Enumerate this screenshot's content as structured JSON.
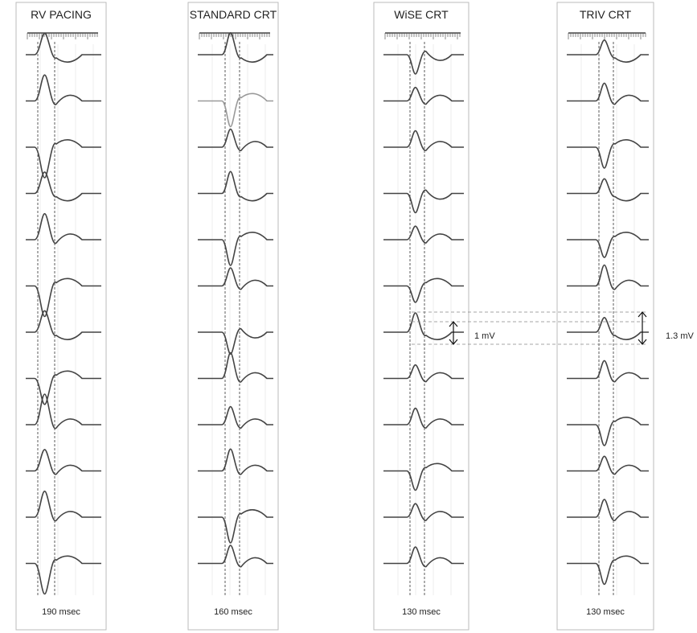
{
  "panels": [
    {
      "title": "RV PACING",
      "duration": "190 msec"
    },
    {
      "title": "STANDARD CRT",
      "duration": "160 msec"
    },
    {
      "title": "WiSE CRT",
      "duration": "130 msec"
    },
    {
      "title": "TRIV CRT",
      "duration": "130 msec"
    }
  ],
  "annotations": [
    {
      "label": "1 mV"
    },
    {
      "label": "1.3 mV"
    }
  ]
}
